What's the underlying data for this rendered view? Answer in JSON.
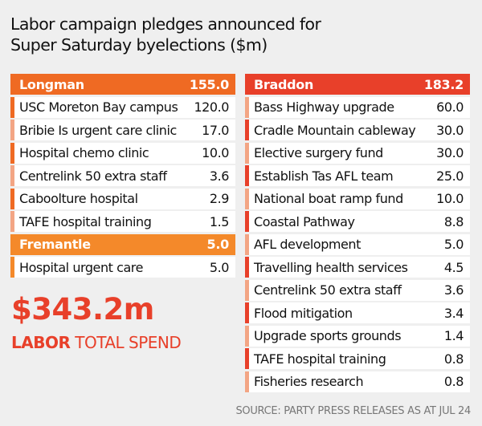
{
  "title_line1": "Labor campaign pledges announced for",
  "title_line2": "Super Saturday byelections ($m)",
  "colors": {
    "longman": "#ef6a23",
    "fremantle": "#f4892a",
    "braddon": "#e8402a",
    "stripe_light": "#f3a584",
    "stripe_dark_orange": "#ef6a23",
    "stripe_dark_red": "#e8402a",
    "total": "#e8402a",
    "background": "#efefef"
  },
  "chart_data": {
    "type": "table",
    "title": "Labor campaign pledges announced for Super Saturday byelections ($m)",
    "groups": [
      {
        "name": "Longman",
        "total": "155.0",
        "items": [
          {
            "label": "USC Moreton Bay campus",
            "value": "120.0"
          },
          {
            "label": "Bribie Is urgent care clinic",
            "value": "17.0"
          },
          {
            "label": "Hospital chemo clinic",
            "value": "10.0"
          },
          {
            "label": "Centrelink 50 extra staff",
            "value": "3.6"
          },
          {
            "label": "Caboolture hospital",
            "value": "2.9"
          },
          {
            "label": "TAFE hospital training",
            "value": "1.5"
          }
        ]
      },
      {
        "name": "Fremantle",
        "total": "5.0",
        "items": [
          {
            "label": "Hospital urgent care",
            "value": "5.0"
          }
        ]
      },
      {
        "name": "Braddon",
        "total": "183.2",
        "items": [
          {
            "label": "Bass Highway upgrade",
            "value": "60.0"
          },
          {
            "label": "Cradle Mountain cableway",
            "value": "30.0"
          },
          {
            "label": "Elective surgery fund",
            "value": "30.0"
          },
          {
            "label": "Establish Tas AFL team",
            "value": "25.0"
          },
          {
            "label": "National boat ramp fund",
            "value": "10.0"
          },
          {
            "label": "Coastal Pathway",
            "value": "8.8"
          },
          {
            "label": "AFL development",
            "value": "5.0"
          },
          {
            "label": "Travelling health services",
            "value": "4.5"
          },
          {
            "label": "Centrelink 50 extra staff",
            "value": "3.6"
          },
          {
            "label": "Flood mitigation",
            "value": "3.4"
          },
          {
            "label": "Upgrade sports grounds",
            "value": "1.4"
          },
          {
            "label": "TAFE hospital training",
            "value": "0.8"
          },
          {
            "label": "Fisheries research",
            "value": "0.8"
          }
        ]
      }
    ]
  },
  "total": {
    "amount": "$343.2m",
    "label_bold": "LABOR",
    "label_rest": " TOTAL SPEND"
  },
  "source": "SOURCE: PARTY PRESS RELEASES AS AT JUL 24"
}
